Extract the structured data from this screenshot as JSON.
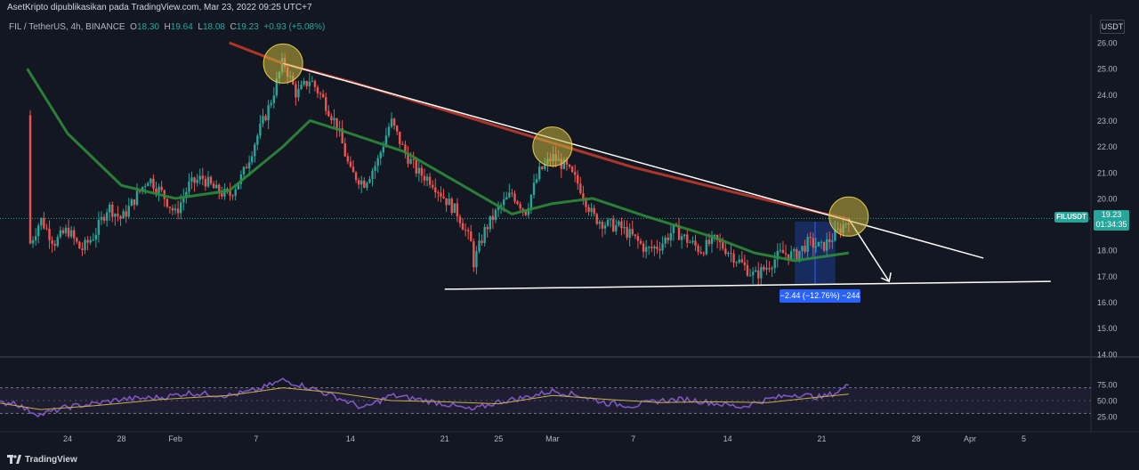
{
  "header": {
    "published_text": "AsetKripto dipublikasikan pada TradingView.com, Mar 23, 2022 09:25 UTC+7"
  },
  "legend": {
    "symbol": "FIL / TetherUS, 4h, BINANCE",
    "open_label": "O",
    "open": "18.30",
    "high_label": "H",
    "high": "19.64",
    "low_label": "L",
    "low": "18.08",
    "close_label": "C",
    "close": "19.23",
    "change": "+0.93 (+5.08%)"
  },
  "currency_button": "USDT",
  "price_tag": {
    "symbol": "FILUSDT",
    "price": "19.23",
    "countdown": "01:34:35"
  },
  "measure_label": "−2.44 (−12.76%) −244",
  "footer": {
    "brand": "TradingView"
  },
  "colors": {
    "background": "#131722",
    "up": "#26a69a",
    "down": "#ef5350",
    "ma_slow": "#c0392b",
    "ma_fast": "#2e8b3a",
    "rsi": "#7e57c2",
    "rsi_signal": "#c8b040",
    "trendline": "#ffffff",
    "circle_fill": "#c8b43c",
    "measure": "#2962ff"
  },
  "chart_data": [
    {
      "type": "candlestick",
      "title": "FIL / TetherUS, 4h, BINANCE",
      "y_axis_side": "right",
      "y_ticks": [
        "26.00",
        "25.00",
        "24.00",
        "23.00",
        "22.00",
        "21.00",
        "20.00",
        "19.00",
        "18.00",
        "17.00",
        "16.00",
        "15.00",
        "14.00"
      ],
      "ylim": [
        13.5,
        26.6
      ],
      "x_ticks": [
        "24",
        "28",
        "Feb",
        "7",
        "14",
        "21",
        "25",
        "Mar",
        "7",
        "14",
        "21",
        "28",
        "Apr",
        "5"
      ],
      "price_path": [
        [
          "Jan 19",
          26.2
        ],
        [
          "Jan 20",
          24.5
        ],
        [
          "Jan 21",
          21.5
        ],
        [
          "Jan 21",
          18.0
        ],
        [
          "Jan 22",
          19.2
        ],
        [
          "Jan 23",
          18.3
        ],
        [
          "Jan 24",
          18.8
        ],
        [
          "Jan 25",
          18.0
        ],
        [
          "Jan 26",
          18.6
        ],
        [
          "Jan 27",
          19.7
        ],
        [
          "Jan 28",
          19.2
        ],
        [
          "Jan 29",
          20.0
        ],
        [
          "Jan 30",
          20.8
        ],
        [
          "Jan 31",
          20.2
        ],
        [
          "Feb 1",
          19.4
        ],
        [
          "Feb 2",
          20.5
        ],
        [
          "Feb 3",
          20.8
        ],
        [
          "Feb 4",
          20.3
        ],
        [
          "Feb 5",
          20.1
        ],
        [
          "Feb 6",
          20.9
        ],
        [
          "Feb 7",
          22.3
        ],
        [
          "Feb 8",
          23.6
        ],
        [
          "Feb 9",
          25.3
        ],
        [
          "Feb 10",
          24.0
        ],
        [
          "Feb 11",
          24.6
        ],
        [
          "Feb 12",
          23.8
        ],
        [
          "Feb 13",
          22.8
        ],
        [
          "Feb 14",
          21.0
        ],
        [
          "Feb 15",
          20.6
        ],
        [
          "Feb 16",
          21.4
        ],
        [
          "Feb 17",
          23.0
        ],
        [
          "Feb 18",
          21.8
        ],
        [
          "Feb 19",
          21.0
        ],
        [
          "Feb 20",
          20.7
        ],
        [
          "Feb 21",
          20.0
        ],
        [
          "Feb 22",
          19.4
        ],
        [
          "Feb 23",
          18.2
        ],
        [
          "Feb 23",
          17.3
        ],
        [
          "Feb 24",
          18.8
        ],
        [
          "Feb 25",
          19.6
        ],
        [
          "Feb 26",
          20.2
        ],
        [
          "Feb 27",
          19.5
        ],
        [
          "Feb 28",
          21.0
        ],
        [
          "Mar 1",
          21.6
        ],
        [
          "Mar 2",
          21.2
        ],
        [
          "Mar 3",
          20.5
        ],
        [
          "Mar 4",
          19.3
        ],
        [
          "Mar 5",
          19.0
        ],
        [
          "Mar 6",
          18.9
        ],
        [
          "Mar 7",
          18.5
        ],
        [
          "Mar 8",
          18.0
        ],
        [
          "Mar 9",
          18.2
        ],
        [
          "Mar 10",
          18.8
        ],
        [
          "Mar 11",
          18.4
        ],
        [
          "Mar 12",
          18.0
        ],
        [
          "Mar 13",
          18.4
        ],
        [
          "Mar 14",
          18.0
        ],
        [
          "Mar 15",
          17.5
        ],
        [
          "Mar 16",
          17.0
        ],
        [
          "Mar 17",
          17.4
        ],
        [
          "Mar 18",
          17.9
        ],
        [
          "Mar 19",
          17.8
        ],
        [
          "Mar 20",
          18.3
        ],
        [
          "Mar 21",
          18.1
        ],
        [
          "Mar 22",
          18.6
        ],
        [
          "Mar 23",
          19.23
        ]
      ],
      "series": [
        {
          "name": "MA (long)",
          "color": "#c0392b",
          "points": [
            [
              "Feb 5",
              26.0
            ],
            [
              "Feb 9",
              25.2
            ],
            [
              "Feb 14",
              24.5
            ],
            [
              "Feb 21",
              23.4
            ],
            [
              "Feb 28",
              22.3
            ],
            [
              "Mar 7",
              21.2
            ],
            [
              "Mar 14",
              20.3
            ],
            [
              "Mar 18",
              19.8
            ],
            [
              "Mar 23",
              19.2
            ]
          ]
        },
        {
          "name": "MA (short)",
          "color": "#2e8b3a",
          "points": [
            [
              "Jan 21",
              25.0
            ],
            [
              "Jan 24",
              22.5
            ],
            [
              "Jan 28",
              20.5
            ],
            [
              "Feb 1",
              20.0
            ],
            [
              "Feb 5",
              20.3
            ],
            [
              "Feb 9",
              22.0
            ],
            [
              "Feb 11",
              23.0
            ],
            [
              "Feb 14",
              22.5
            ],
            [
              "Feb 18",
              21.8
            ],
            [
              "Feb 22",
              20.6
            ],
            [
              "Feb 26",
              19.4
            ],
            [
              "Mar 1",
              19.8
            ],
            [
              "Mar 4",
              20.0
            ],
            [
              "Mar 8",
              19.3
            ],
            [
              "Mar 13",
              18.5
            ],
            [
              "Mar 16",
              17.9
            ],
            [
              "Mar 19",
              17.6
            ],
            [
              "Mar 23",
              17.9
            ]
          ]
        }
      ],
      "trendlines": [
        {
          "from": [
            "Feb 9",
            25.2
          ],
          "to": [
            "Apr 2",
            17.7
          ]
        },
        {
          "from": [
            "Feb 21",
            16.5
          ],
          "to": [
            "Apr 7",
            16.8
          ]
        },
        {
          "from": [
            "Mar 23",
            19.2
          ],
          "to": [
            "Mar 26",
            16.8
          ],
          "arrow": true
        }
      ],
      "highlight_circles": [
        [
          "Feb 9",
          25.2
        ],
        [
          "Mar 1",
          22.0
        ],
        [
          "Mar 23",
          19.3
        ]
      ],
      "measure_range": {
        "from": [
          "Mar 19",
          19.1
        ],
        "to": [
          "Mar 22",
          16.7
        ]
      }
    },
    {
      "type": "line",
      "title": "RSI",
      "y_ticks": [
        "75.00",
        "50.00",
        "25.00"
      ],
      "ylim": [
        10,
        92
      ],
      "levels": [
        70,
        30
      ],
      "series": [
        {
          "name": "RSI",
          "color": "#7e57c2",
          "points": [
            [
              "Jan 19",
              45
            ],
            [
              "Jan 20",
              48
            ],
            [
              "Jan 21",
              35
            ],
            [
              "Jan 22",
              28
            ],
            [
              "Jan 24",
              40
            ],
            [
              "Jan 26",
              45
            ],
            [
              "Jan 28",
              52
            ],
            [
              "Jan 31",
              55
            ],
            [
              "Feb 2",
              62
            ],
            [
              "Feb 5",
              58
            ],
            [
              "Feb 7",
              66
            ],
            [
              "Feb 9",
              82
            ],
            [
              "Feb 11",
              70
            ],
            [
              "Feb 13",
              55
            ],
            [
              "Feb 15",
              38
            ],
            [
              "Feb 17",
              58
            ],
            [
              "Feb 19",
              52
            ],
            [
              "Feb 21",
              45
            ],
            [
              "Feb 23",
              35
            ],
            [
              "Feb 25",
              48
            ],
            [
              "Feb 27",
              55
            ],
            [
              "Mar 1",
              65
            ],
            [
              "Mar 3",
              58
            ],
            [
              "Mar 5",
              46
            ],
            [
              "Mar 7",
              42
            ],
            [
              "Mar 9",
              50
            ],
            [
              "Mar 11",
              52
            ],
            [
              "Mar 13",
              46
            ],
            [
              "Mar 15",
              40
            ],
            [
              "Mar 17",
              52
            ],
            [
              "Mar 19",
              60
            ],
            [
              "Mar 21",
              55
            ],
            [
              "Mar 22",
              62
            ],
            [
              "Mar 23",
              74
            ]
          ]
        },
        {
          "name": "RSI signal",
          "color": "#c8b040",
          "points": [
            [
              "Jan 19",
              46
            ],
            [
              "Jan 22",
              36
            ],
            [
              "Jan 26",
              42
            ],
            [
              "Jan 31",
              52
            ],
            [
              "Feb 5",
              58
            ],
            [
              "Feb 9",
              70
            ],
            [
              "Feb 13",
              62
            ],
            [
              "Feb 17",
              50
            ],
            [
              "Feb 21",
              48
            ],
            [
              "Feb 25",
              45
            ],
            [
              "Mar 1",
              58
            ],
            [
              "Mar 5",
              52
            ],
            [
              "Mar 9",
              47
            ],
            [
              "Mar 13",
              48
            ],
            [
              "Mar 17",
              47
            ],
            [
              "Mar 21",
              56
            ],
            [
              "Mar 23",
              60
            ]
          ]
        }
      ]
    }
  ]
}
